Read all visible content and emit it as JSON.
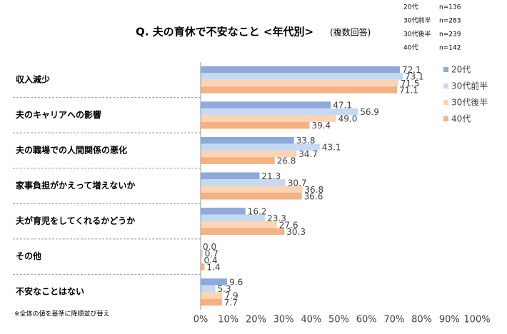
{
  "chart_data": {
    "type": "hbar",
    "title": "Q. 夫の育休で不安なこと <年代別>",
    "subtitle": "(複数回答)",
    "samples": [
      {
        "label": "20代",
        "n": "n=136"
      },
      {
        "label": "30代前半",
        "n": "n=283"
      },
      {
        "label": "30代後半",
        "n": "n=239"
      },
      {
        "label": "40代",
        "n": "n=142"
      }
    ],
    "note": "※全体の値を基準に降順並び替え",
    "categories": [
      "収入減少",
      "夫のキャリアへの影響",
      "夫の職場での人間関係の悪化",
      "家事負担がかえって増えないか",
      "夫が育児をしてくれるかどうか",
      "その他",
      "不安なことはない"
    ],
    "series": [
      {
        "name": "20代",
        "color": "#8eaadb",
        "values": [
          72.1,
          47.1,
          33.8,
          21.3,
          16.2,
          0,
          9.6
        ],
        "value_labels": [
          "72.1",
          "47.1",
          "33.8",
          "21.3",
          "16.2",
          "0.0",
          "9.6"
        ]
      },
      {
        "name": "30代前半",
        "color": "#c5d9f1",
        "values": [
          73.1,
          56.9,
          43.1,
          30.7,
          23.3,
          0.7,
          5.3
        ]
      },
      {
        "name": "30代後半",
        "color": "#fbd4b4",
        "values": [
          71.5,
          49.0,
          34.7,
          36.8,
          27.6,
          0.4,
          7.9
        ],
        "value_labels": [
          "71.5",
          "49.0",
          "34.7",
          "36.8",
          "27.6",
          "0.4",
          "7.9"
        ]
      },
      {
        "name": "40代",
        "color": "#f4b183",
        "values": [
          71.1,
          39.4,
          26.8,
          36.6,
          30.3,
          1.4,
          7.7
        ]
      }
    ],
    "xlim": [
      0,
      100
    ],
    "xticks": [
      {
        "value": 0,
        "label": "0%"
      },
      {
        "value": 10,
        "label": "10%"
      },
      {
        "value": 20,
        "label": "20%"
      },
      {
        "value": 30,
        "label": "30%"
      },
      {
        "value": 40,
        "label": "40%"
      },
      {
        "value": 50,
        "label": "50%"
      },
      {
        "value": 60,
        "label": "60%"
      },
      {
        "value": 70,
        "label": "70%"
      },
      {
        "value": 80,
        "label": "80%"
      },
      {
        "value": 90,
        "label": "90%"
      },
      {
        "value": 100,
        "label": "100%"
      }
    ],
    "legend": "right"
  }
}
